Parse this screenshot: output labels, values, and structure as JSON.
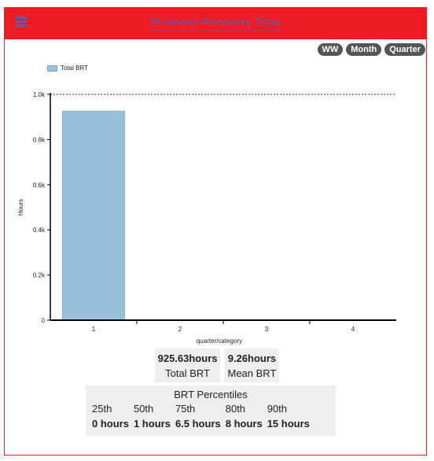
{
  "header": {
    "title": "Business Recovery Time",
    "menu_icon": "hamburger-menu-icon"
  },
  "period_buttons": [
    "WW",
    "Month",
    "Quarter"
  ],
  "chart_data": {
    "type": "bar",
    "legend": "Total BRT",
    "categories": [
      "1",
      "2",
      "3",
      "4"
    ],
    "series": [
      {
        "name": "Total BRT",
        "values": [
          925.63,
          0,
          0,
          0
        ]
      }
    ],
    "ylabel": "Hours",
    "xlabel": "quarter/category",
    "ylim": [
      0,
      1000
    ],
    "yticks": [
      "0",
      "0.2k",
      "0.4k",
      "0.6k",
      "0.8k",
      "1.0k"
    ],
    "bar_color": "#99c1dc",
    "reference_line": 1000
  },
  "stats": {
    "total": {
      "value": "925.63hours",
      "label": "Total BRT"
    },
    "mean": {
      "value": "9.26hours",
      "label": "Mean BRT"
    }
  },
  "percentiles": {
    "title": "BRT Percentiles",
    "items": [
      {
        "label": "25th",
        "value": "0 hours"
      },
      {
        "label": "50th",
        "value": "1 hours"
      },
      {
        "label": "75th",
        "value": "6.5 hours"
      },
      {
        "label": "80th",
        "value": "8 hours"
      },
      {
        "label": "90th",
        "value": "15 hours"
      }
    ]
  },
  "colors": {
    "header": "#ee1c25",
    "title": "#6f55a8",
    "pill": "#555555",
    "stat_bg": "#eeeeee"
  }
}
